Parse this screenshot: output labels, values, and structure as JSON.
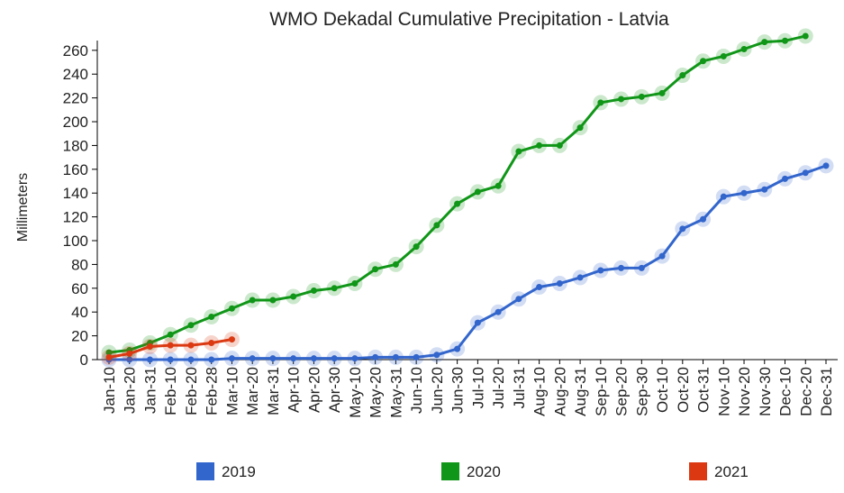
{
  "chart_data": {
    "type": "line",
    "title": "WMO Dekadal Cumulative Precipitation - Latvia",
    "y_label": "Millimeters",
    "categories": [
      "Jan-10",
      "Jan-20",
      "Jan-31",
      "Feb-10",
      "Feb-20",
      "Feb-28",
      "Mar-10",
      "Mar-20",
      "Mar-31",
      "Apr-10",
      "Apr-20",
      "Apr-30",
      "May-10",
      "May-20",
      "May-31",
      "Jun-10",
      "Jun-20",
      "Jun-30",
      "Jul-10",
      "Jul-20",
      "Jul-31",
      "Aug-10",
      "Aug-20",
      "Aug-31",
      "Sep-10",
      "Sep-20",
      "Sep-30",
      "Oct-10",
      "Oct-20",
      "Oct-31",
      "Nov-10",
      "Nov-20",
      "Nov-30",
      "Dec-10",
      "Dec-20",
      "Dec-31"
    ],
    "series": [
      {
        "name": "2019",
        "color": "#3366cc",
        "values": [
          0,
          0,
          0,
          0,
          0,
          0,
          1,
          1,
          1,
          1,
          1,
          1,
          1,
          2,
          2,
          2,
          4,
          9,
          31,
          40,
          51,
          61,
          64,
          69,
          75,
          77,
          77,
          87,
          110,
          118,
          137,
          140,
          143,
          152,
          157,
          163
        ]
      },
      {
        "name": "2020",
        "color": "#109618",
        "values": [
          6,
          8,
          14,
          21,
          29,
          36,
          43,
          50,
          50,
          53,
          58,
          60,
          64,
          76,
          80,
          95,
          113,
          131,
          141,
          146,
          175,
          180,
          180,
          195,
          216,
          219,
          221,
          224,
          239,
          251,
          255,
          261,
          267,
          268,
          272,
          null
        ]
      },
      {
        "name": "2021",
        "color": "#dc3912",
        "values": [
          2,
          5,
          11,
          12,
          12,
          14,
          17,
          null,
          null,
          null,
          null,
          null,
          null,
          null,
          null,
          null,
          null,
          null,
          null,
          null,
          null,
          null,
          null,
          null,
          null,
          null,
          null,
          null,
          null,
          null,
          null,
          null,
          null,
          null,
          null,
          null
        ]
      }
    ],
    "ylim": [
      0,
      272
    ],
    "yticks": [
      0,
      20,
      40,
      60,
      80,
      100,
      120,
      140,
      160,
      180,
      200,
      220,
      240,
      260
    ]
  }
}
